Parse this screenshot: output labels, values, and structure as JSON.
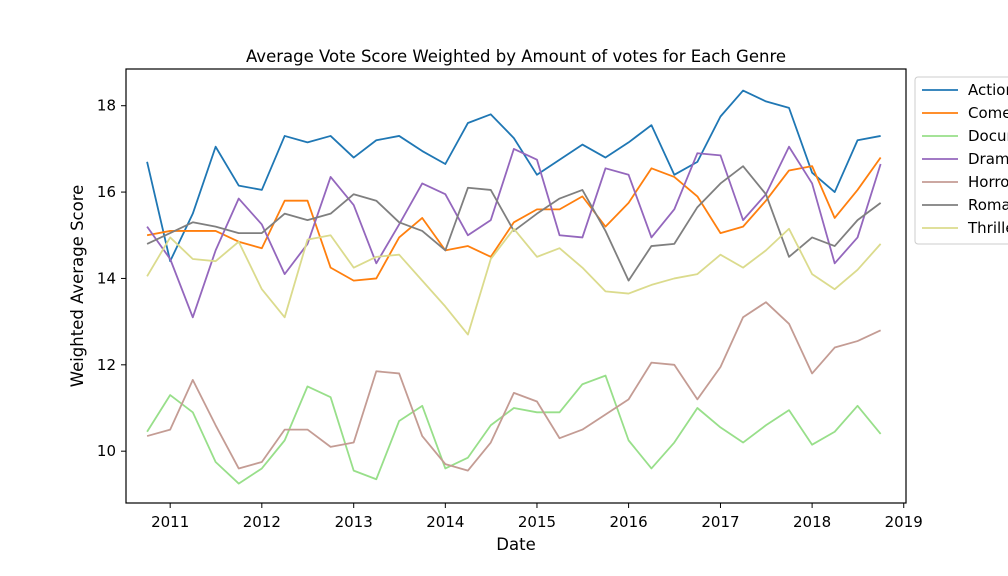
{
  "chart_data": {
    "type": "line",
    "title": "Average Vote Score Weighted by Amount of votes for Each Genre",
    "xlabel": "Date",
    "ylabel": "Weighted Average Score",
    "xlim": [
      "2010-07-09",
      "2019-01-10"
    ],
    "ylim": [
      8.8,
      18.85
    ],
    "x_ticks": [
      "2011",
      "2012",
      "2013",
      "2014",
      "2015",
      "2016",
      "2017",
      "2018",
      "2019"
    ],
    "y_ticks": [
      10,
      12,
      14,
      16,
      18
    ],
    "grid": false,
    "legend_position": "outside-right-top",
    "x": [
      "2010-10-01",
      "2011-01-01",
      "2011-04-01",
      "2011-07-01",
      "2011-10-01",
      "2012-01-01",
      "2012-04-01",
      "2012-07-01",
      "2012-10-01",
      "2013-01-01",
      "2013-04-01",
      "2013-07-01",
      "2013-10-01",
      "2014-01-01",
      "2014-04-01",
      "2014-07-01",
      "2014-10-01",
      "2015-01-01",
      "2015-04-01",
      "2015-07-01",
      "2015-10-01",
      "2016-01-01",
      "2016-04-01",
      "2016-07-01",
      "2016-10-01",
      "2017-01-01",
      "2017-04-01",
      "2017-07-01",
      "2017-10-01",
      "2018-01-01",
      "2018-04-01",
      "2018-07-01",
      "2018-10-01"
    ],
    "series": [
      {
        "name": "Action",
        "color": "#1f77b4",
        "values": [
          16.7,
          14.4,
          15.5,
          17.05,
          16.15,
          16.05,
          17.3,
          17.15,
          17.3,
          16.8,
          17.2,
          17.3,
          16.95,
          16.65,
          17.6,
          17.8,
          17.25,
          16.4,
          16.75,
          17.1,
          16.8,
          17.15,
          17.55,
          16.4,
          16.7,
          17.75,
          18.35,
          18.1,
          17.95,
          16.45,
          16.0,
          17.2,
          17.3
        ]
      },
      {
        "name": "Comedy",
        "color": "#ff7f0e",
        "values": [
          15.0,
          15.1,
          15.1,
          15.1,
          14.85,
          14.7,
          15.8,
          15.8,
          14.25,
          13.95,
          14.0,
          14.95,
          15.4,
          14.65,
          14.75,
          14.5,
          15.3,
          15.6,
          15.6,
          15.9,
          15.2,
          15.75,
          16.55,
          16.35,
          15.9,
          15.05,
          15.2,
          15.8,
          16.5,
          16.6,
          15.4,
          16.05,
          16.8
        ]
      },
      {
        "name": "Documentary",
        "color": "#98df8a",
        "values": [
          10.45,
          11.3,
          10.9,
          9.75,
          9.25,
          9.6,
          10.25,
          11.5,
          11.25,
          9.55,
          9.35,
          10.7,
          11.05,
          9.6,
          9.85,
          10.6,
          11.0,
          10.9,
          10.9,
          11.55,
          11.75,
          10.25,
          9.6,
          10.2,
          11.0,
          10.55,
          10.2,
          10.6,
          10.95,
          10.15,
          10.45,
          11.05,
          10.4
        ]
      },
      {
        "name": "Drama",
        "color": "#9467bd",
        "values": [
          15.2,
          14.45,
          13.1,
          14.65,
          15.85,
          15.25,
          14.1,
          14.8,
          16.35,
          15.7,
          14.35,
          15.25,
          16.2,
          15.95,
          15.0,
          15.35,
          17.0,
          16.75,
          15.0,
          14.95,
          16.55,
          16.4,
          14.95,
          15.6,
          16.9,
          16.85,
          15.35,
          15.95,
          17.05,
          16.2,
          14.35,
          14.95,
          16.65
        ]
      },
      {
        "name": "Horror",
        "color": "#c49c94",
        "values": [
          10.35,
          10.5,
          11.65,
          10.6,
          9.6,
          9.75,
          10.5,
          10.5,
          10.1,
          10.2,
          11.85,
          11.8,
          10.35,
          9.7,
          9.55,
          10.2,
          11.35,
          11.15,
          10.3,
          10.5,
          10.85,
          11.2,
          12.05,
          12.0,
          11.2,
          11.95,
          13.1,
          13.45,
          12.95,
          11.8,
          12.4,
          12.55,
          12.8
        ]
      },
      {
        "name": "Romance",
        "color": "#7f7f7f",
        "values": [
          14.8,
          15.05,
          15.3,
          15.2,
          15.05,
          15.05,
          15.5,
          15.35,
          15.5,
          15.95,
          15.8,
          15.3,
          15.1,
          14.65,
          16.1,
          16.05,
          15.1,
          15.5,
          15.85,
          16.05,
          15.1,
          13.95,
          14.75,
          14.8,
          15.65,
          16.2,
          16.6,
          15.95,
          14.5,
          14.95,
          14.75,
          15.35,
          15.75
        ]
      },
      {
        "name": "Thriller",
        "color": "#dbdb8d",
        "values": [
          14.05,
          14.95,
          14.45,
          14.4,
          14.85,
          13.75,
          13.1,
          14.9,
          15.0,
          14.25,
          14.5,
          14.55,
          13.95,
          13.35,
          12.7,
          14.45,
          15.15,
          14.5,
          14.7,
          14.25,
          13.7,
          13.65,
          13.85,
          14.0,
          14.1,
          14.55,
          14.25,
          14.65,
          15.15,
          14.1,
          13.75,
          14.2,
          14.8
        ]
      }
    ]
  }
}
